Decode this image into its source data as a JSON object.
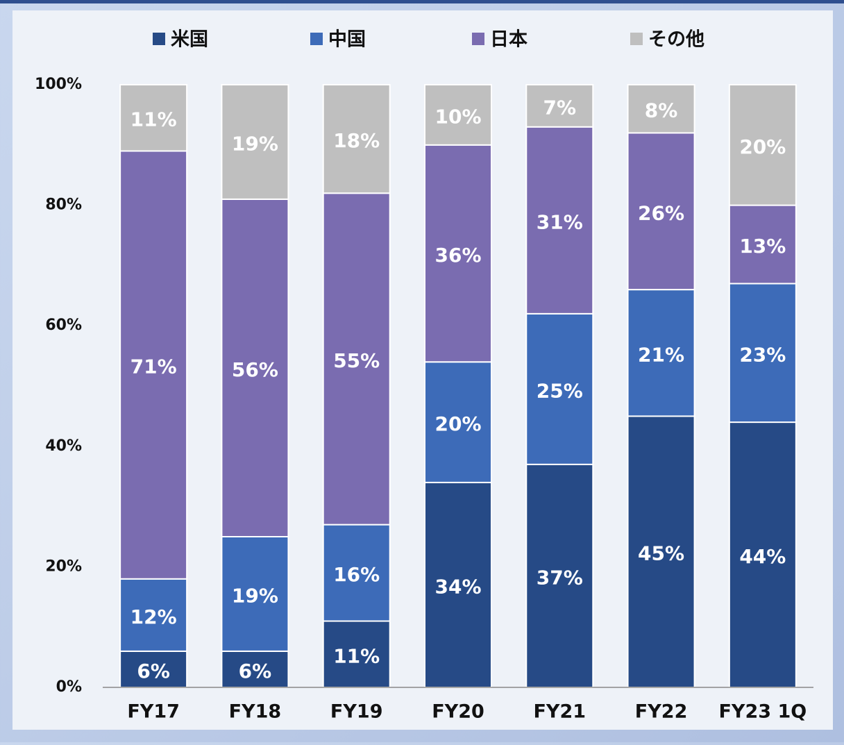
{
  "chart_data": {
    "type": "stacked_bar",
    "categories": [
      "FY17",
      "FY18",
      "FY19",
      "FY20",
      "FY21",
      "FY22",
      "FY23 1Q"
    ],
    "series": [
      {
        "name": "米国",
        "color": "#264a86",
        "values": [
          6,
          6,
          11,
          34,
          37,
          45,
          44
        ],
        "value_labels": [
          "6%",
          "6%",
          "11%",
          "34%",
          "37%",
          "45%",
          "44%"
        ]
      },
      {
        "name": "中国",
        "color": "#3d6bb8",
        "values": [
          12,
          19,
          16,
          20,
          25,
          21,
          23
        ],
        "value_labels": [
          "12%",
          "19%",
          "16%",
          "20%",
          "25%",
          "21%",
          "23%"
        ]
      },
      {
        "name": "日本",
        "color": "#7a6cb0",
        "values": [
          71,
          56,
          55,
          36,
          31,
          26,
          13
        ],
        "value_labels": [
          "71%",
          "56%",
          "55%",
          "36%",
          "31%",
          "26%",
          "13%"
        ]
      },
      {
        "name": "その他",
        "color": "#bfbfbf",
        "values": [
          11,
          19,
          18,
          10,
          7,
          8,
          20
        ],
        "value_labels": [
          "11%",
          "19%",
          "18%",
          "10%",
          "7%",
          "8%",
          "20%"
        ]
      }
    ],
    "ylim": [
      0,
      100
    ],
    "yticks": [
      {
        "value": 0,
        "label": "0%"
      },
      {
        "value": 20,
        "label": "20%"
      },
      {
        "value": 40,
        "label": "40%"
      },
      {
        "value": 60,
        "label": "60%"
      },
      {
        "value": 80,
        "label": "80%"
      },
      {
        "value": 100,
        "label": "100%"
      }
    ],
    "legend": "top"
  }
}
